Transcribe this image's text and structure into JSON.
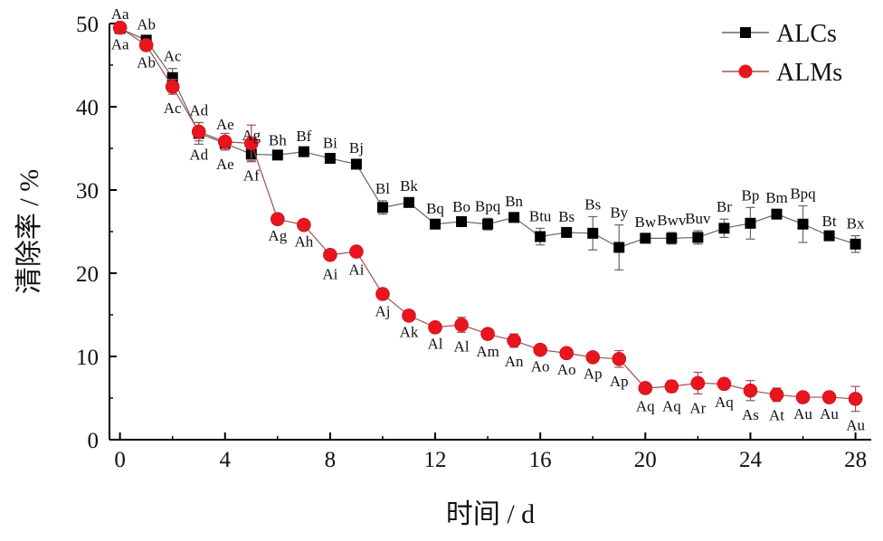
{
  "chart_data": {
    "type": "line",
    "title": "",
    "xlabel": "时间 / d",
    "ylabel": "清除率 / %",
    "xlim": [
      -0.4,
      28.6
    ],
    "ylim": [
      0,
      50
    ],
    "xticks": [
      0,
      4,
      8,
      12,
      16,
      20,
      24,
      28
    ],
    "yticks": [
      0,
      10,
      20,
      30,
      40,
      50
    ],
    "xtick_labels": [
      "0",
      "4",
      "8",
      "12",
      "16",
      "20",
      "24",
      "28"
    ],
    "ytick_labels": [
      "0",
      "10",
      "20",
      "30",
      "40",
      "50"
    ],
    "grid": false,
    "legend_position": "top-right",
    "series": [
      {
        "name": "ALCs",
        "marker": "square",
        "color": "#000000",
        "line_color": "#666666",
        "x": [
          0,
          1,
          2,
          3,
          4,
          5,
          6,
          7,
          8,
          9,
          10,
          11,
          12,
          13,
          14,
          15,
          16,
          17,
          18,
          19,
          20,
          21,
          22,
          23,
          24,
          25,
          26,
          27,
          28
        ],
        "y": [
          49.4,
          48.0,
          43.5,
          36.8,
          35.6,
          34.3,
          34.2,
          34.6,
          33.8,
          33.1,
          27.9,
          28.5,
          25.9,
          26.2,
          25.9,
          26.7,
          24.4,
          24.9,
          24.8,
          23.1,
          24.2,
          24.2,
          24.3,
          25.4,
          26.0,
          27.1,
          25.9,
          24.5,
          23.5
        ],
        "err": [
          0.3,
          0.4,
          1.1,
          1.3,
          0.8,
          0.8,
          0.3,
          0.4,
          0.4,
          0.5,
          0.8,
          0.5,
          0.4,
          0.3,
          0.7,
          0.5,
          1.0,
          0.4,
          2.0,
          2.7,
          0.5,
          0.7,
          0.8,
          1.1,
          1.9,
          0.5,
          2.2,
          0.3,
          1.0
        ],
        "labels": [
          "Aa",
          "Ab",
          "Ac",
          "Ad",
          "Ae",
          "Ag",
          "Bh",
          "Bf",
          "Bi",
          "Bj",
          "Bl",
          "Bk",
          "Bq",
          "Bo",
          "Bpq",
          "Bn",
          "Btu",
          "Bs",
          "Bs",
          "By",
          "Bw",
          "Bwv",
          "Buv",
          "Br",
          "Bp",
          "Bm",
          "Bpq",
          "Bt",
          "Bx"
        ]
      },
      {
        "name": "ALMs",
        "marker": "circle",
        "color": "#e8141e",
        "line_color": "#a05050",
        "x": [
          0,
          1,
          2,
          3,
          4,
          5,
          6,
          7,
          8,
          9,
          10,
          11,
          12,
          13,
          14,
          15,
          16,
          17,
          18,
          19,
          20,
          21,
          22,
          23,
          24,
          25,
          26,
          27,
          28
        ],
        "y": [
          49.5,
          47.4,
          42.4,
          37.0,
          35.8,
          35.6,
          26.5,
          25.8,
          22.2,
          22.6,
          17.5,
          14.9,
          13.5,
          13.8,
          12.7,
          11.9,
          10.8,
          10.4,
          9.9,
          9.7,
          6.2,
          6.4,
          6.8,
          6.7,
          5.9,
          5.4,
          5.1,
          5.1,
          4.9
        ],
        "err": [
          0.3,
          0.4,
          0.9,
          1.1,
          1.0,
          2.2,
          0.3,
          0.3,
          0.6,
          0.5,
          0.4,
          0.3,
          0.3,
          0.9,
          0.4,
          0.8,
          0.3,
          0.3,
          0.3,
          1.0,
          0.5,
          0.7,
          1.3,
          0.5,
          1.2,
          0.8,
          0.3,
          0.3,
          1.5
        ],
        "labels": [
          "Aa",
          "Ab",
          "Ac",
          "Ad",
          "Ae",
          "Af",
          "Ag",
          "Ah",
          "Ai",
          "Ai",
          "Aj",
          "Ak",
          "Al",
          "Al",
          "Am",
          "An",
          "Ao",
          "Ao",
          "Ap",
          "Ap",
          "Aq",
          "Aq",
          "Ar",
          "Aq",
          "As",
          "At",
          "Au",
          "Au",
          "Au"
        ]
      }
    ]
  }
}
